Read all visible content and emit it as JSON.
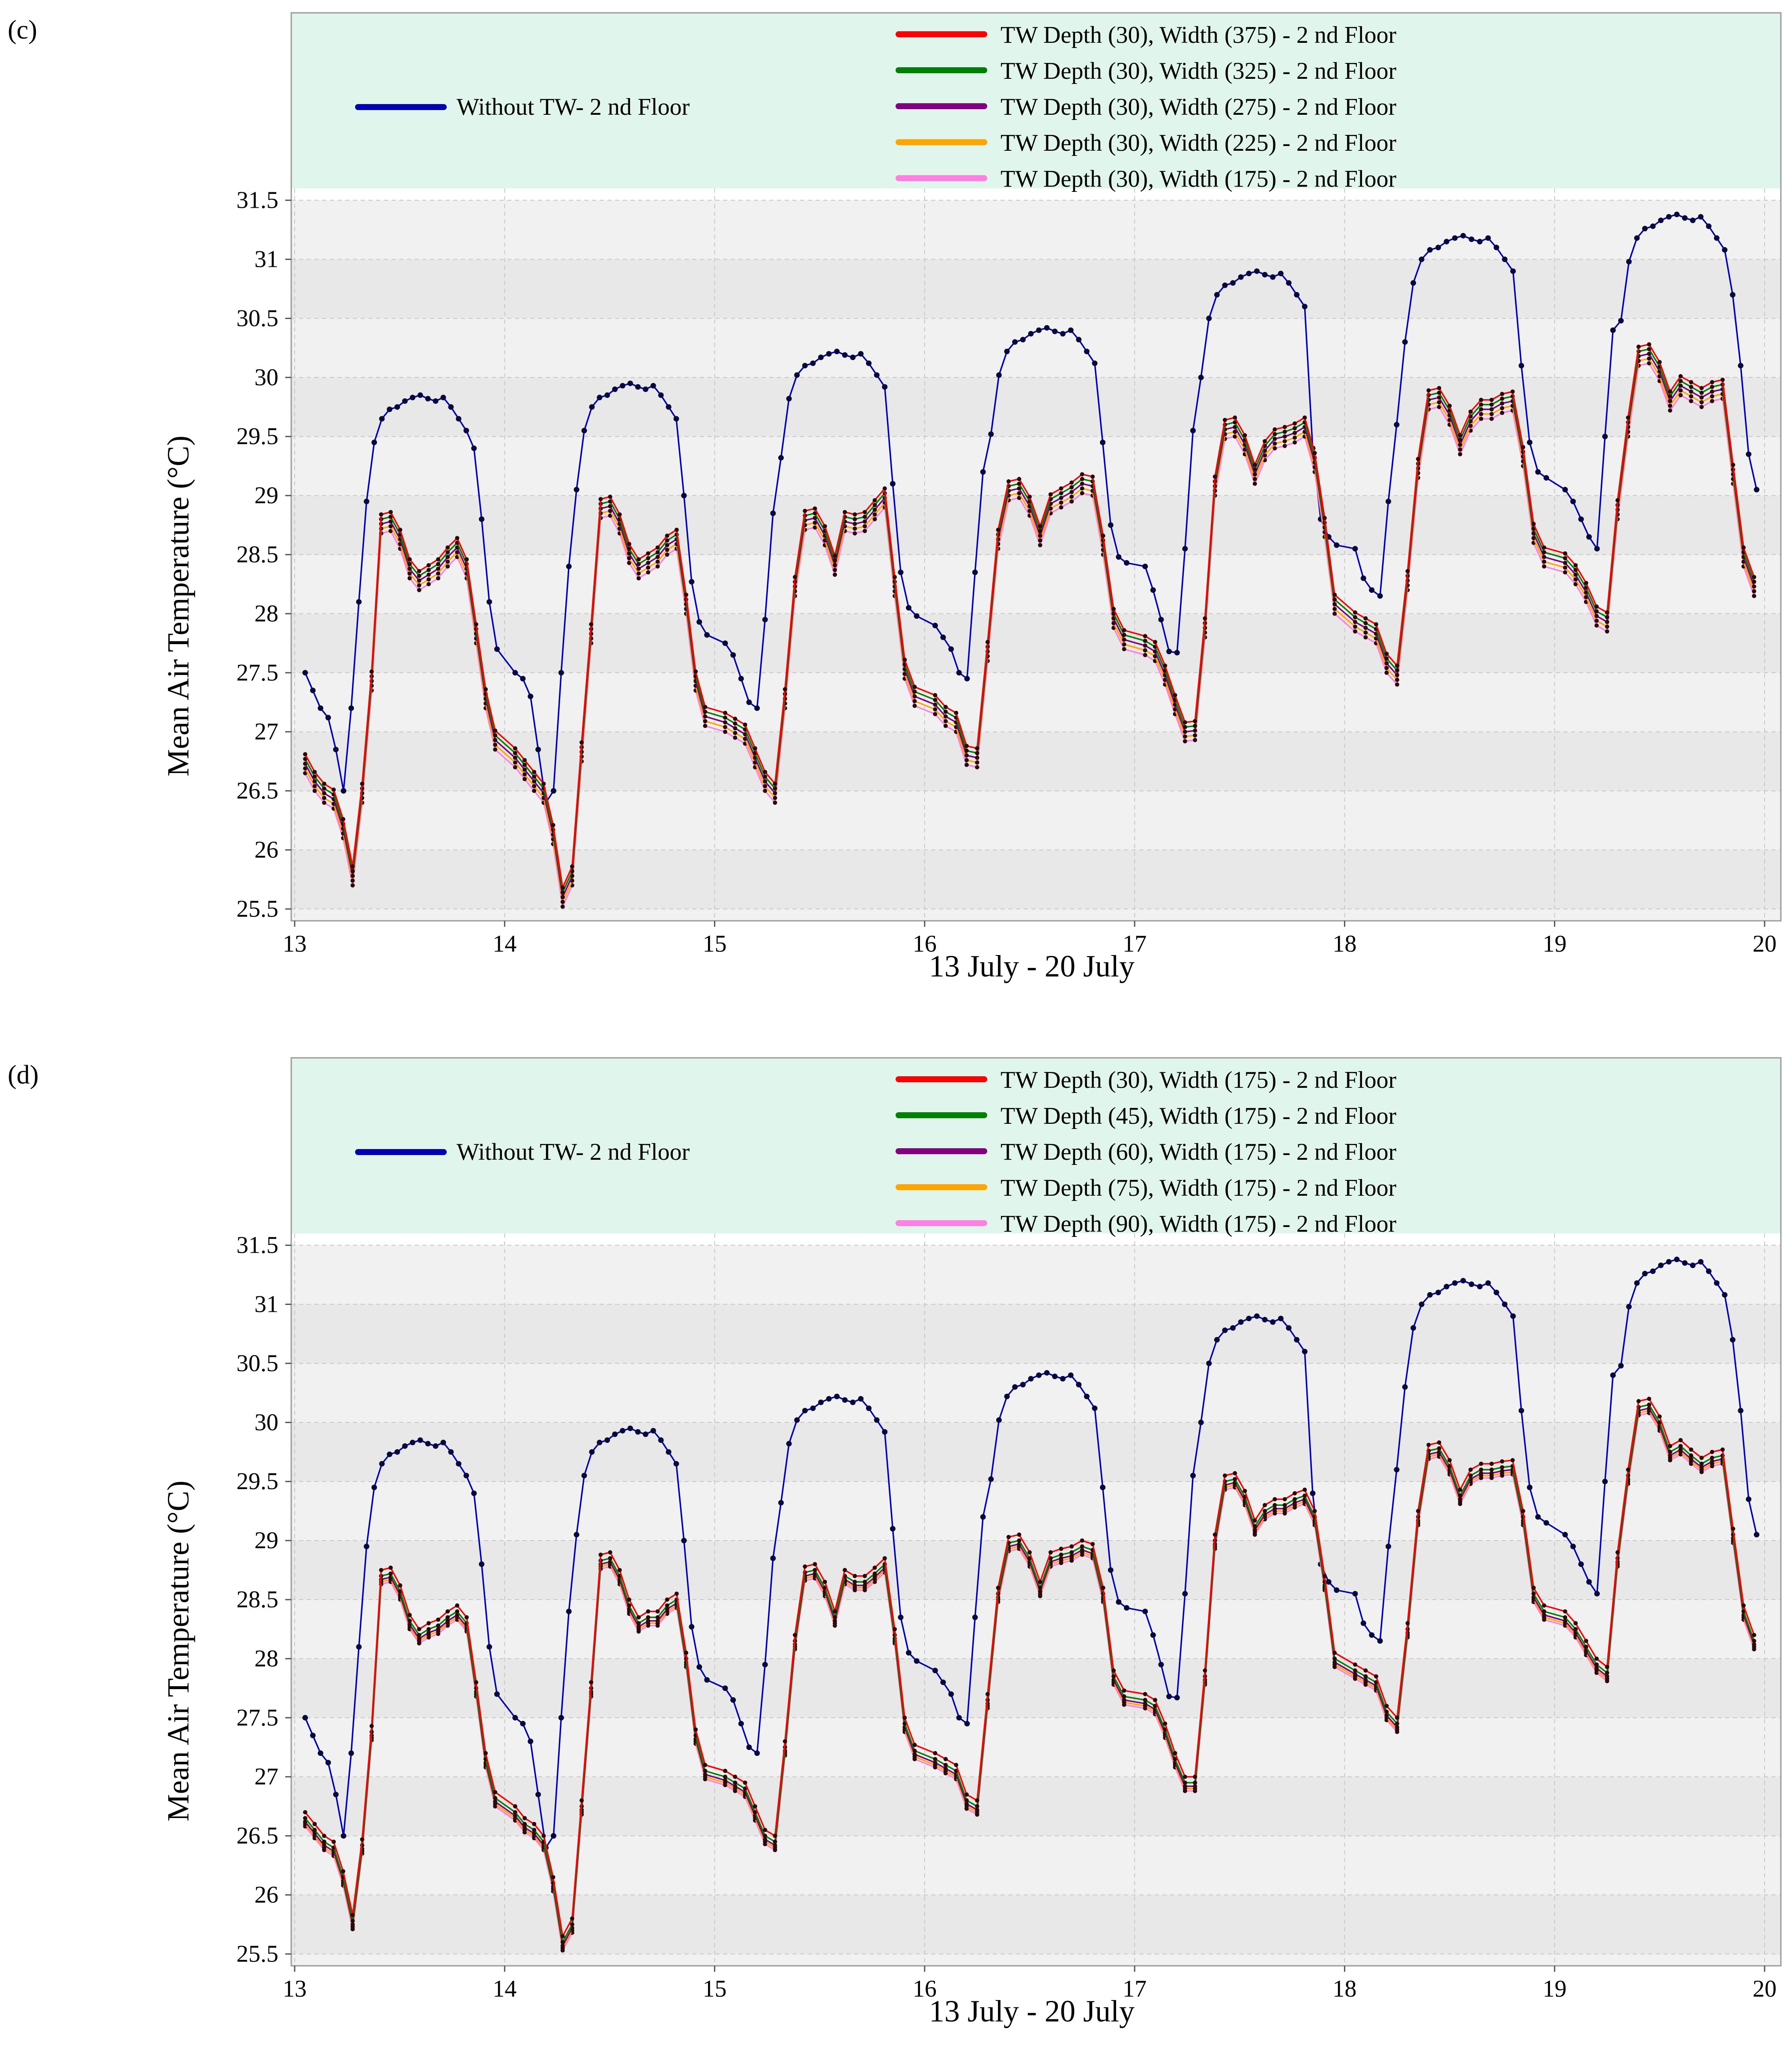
{
  "chart_data": [
    {
      "panel_label": "(c)",
      "type": "line",
      "xlabel": "13 July - 20 July",
      "ylabel": "Mean Air Temperature (°C)",
      "xlim": [
        13,
        20
      ],
      "ylim": [
        25.4,
        31.6
      ],
      "x_ticks": [
        "13",
        "14",
        "15",
        "16",
        "17",
        "18",
        "19",
        "20"
      ],
      "y_ticks": [
        "25.5",
        "26",
        "26.5",
        "27",
        "27.5",
        "28",
        "28.5",
        "29",
        "29.5",
        "30",
        "30.5",
        "31",
        "31.5"
      ],
      "grid": true,
      "legend": {
        "placement": "top",
        "background": "#e0f5ec"
      },
      "baseline": {
        "name": "Without TW- 2 nd Floor",
        "color": "#0000b4",
        "days": [
          {
            "night": [
              27.5,
              27.35,
              27.2,
              27.12,
              26.85,
              26.5
            ],
            "rise": [
              27.2,
              28.1
            ],
            "peak": 29.85,
            "evening": [
              29.4,
              28.8,
              28.1,
              27.7
            ]
          },
          {
            "night": [
              27.5,
              27.45,
              27.3,
              26.85,
              26.4
            ],
            "rise": [
              26.5,
              27.5,
              28.4
            ],
            "peak": 29.95,
            "evening": [
              29.0,
              28.27,
              27.93,
              27.82
            ]
          },
          {
            "night": [
              27.75,
              27.65,
              27.45,
              27.25,
              27.2
            ],
            "rise": [
              27.95,
              28.85
            ],
            "peak": 30.22,
            "evening": [
              29.1,
              28.35,
              28.05,
              27.98
            ]
          },
          {
            "night": [
              27.9,
              27.8,
              27.7,
              27.5,
              27.45
            ],
            "rise": [
              28.35,
              29.2
            ],
            "peak": 30.42,
            "evening": [
              29.45,
              28.75,
              28.48,
              28.43
            ]
          },
          {
            "night": [
              28.4,
              28.2,
              27.95,
              27.68,
              27.67
            ],
            "rise": [
              28.55,
              29.55
            ],
            "peak": 30.9,
            "evening": [
              29.4,
              28.8,
              28.65,
              28.58
            ]
          },
          {
            "night": [
              28.55,
              28.3,
              28.2,
              28.15
            ],
            "rise": [
              28.95,
              29.6
            ],
            "peak": 31.2,
            "evening": [
              30.1,
              29.45,
              29.2,
              29.15
            ]
          },
          {
            "night": [
              29.05,
              28.95,
              28.8,
              28.65,
              28.55
            ],
            "rise": [
              29.5,
              30.4
            ],
            "peak": 31.38,
            "evening": [
              30.7,
              30.1,
              29.35,
              29.05
            ]
          }
        ]
      },
      "tw_profile": [
        {
          "night": [
            26.75,
            26.6,
            26.5,
            26.45,
            26.2,
            25.8
          ],
          "rise": [
            26.5,
            27.45
          ],
          "peak": 28.8,
          "plateau": [
            28.3,
            28.35,
            28.4,
            28.5,
            28.58
          ],
          "evening": [
            28.4,
            27.85,
            27.3,
            26.95
          ]
        },
        {
          "night": [
            26.8,
            26.7,
            26.6,
            26.5,
            26.15,
            25.62
          ],
          "rise": [
            25.8,
            26.85,
            27.85
          ],
          "peak": 28.93,
          "plateau": [
            28.4,
            28.45,
            28.5,
            28.6,
            28.65
          ],
          "evening": [
            28.1,
            27.45,
            27.15
          ]
        },
        {
          "night": [
            27.1,
            27.05,
            27.0,
            26.8,
            26.6,
            26.5
          ],
          "rise": [
            27.3,
            28.25
          ],
          "peak": 28.83,
          "plateau": [
            28.8,
            28.78,
            28.8,
            28.9,
            29.0
          ],
          "evening": [
            28.25,
            27.55,
            27.32
          ]
        },
        {
          "night": [
            27.25,
            27.15,
            27.1,
            26.82,
            26.8
          ],
          "rise": [
            27.7,
            28.65
          ],
          "peak": 29.08,
          "plateau": [
            28.95,
            29.0,
            29.05,
            29.12,
            29.1
          ],
          "evening": [
            28.6,
            27.98,
            27.8
          ]
        },
        {
          "night": [
            27.75,
            27.7,
            27.5,
            27.25,
            27.02,
            27.03
          ],
          "rise": [
            27.9,
            29.1
          ],
          "peak": 29.6,
          "plateau": [
            29.4,
            29.5,
            29.52,
            29.55,
            29.6
          ],
          "evening": [
            29.3,
            28.75,
            28.1
          ]
        },
        {
          "night": [
            27.95,
            27.9,
            27.85,
            27.6,
            27.5
          ],
          "rise": [
            28.3,
            29.25
          ],
          "peak": 29.85,
          "plateau": [
            29.65,
            29.75,
            29.75,
            29.8,
            29.82
          ],
          "evening": [
            29.35,
            28.7,
            28.5
          ]
        },
        {
          "night": [
            28.45,
            28.35,
            28.2,
            28.0,
            27.95
          ],
          "rise": [
            28.9,
            29.6
          ],
          "peak": 30.22,
          "plateau": [
            29.95,
            29.9,
            29.85,
            29.9,
            29.92
          ],
          "evening": [
            29.2,
            28.5,
            28.25
          ]
        }
      ],
      "series": [
        {
          "name": "TW Depth (30), Width (375) - 2 nd Floor",
          "color": "#ff0000",
          "offset": 0.06
        },
        {
          "name": "TW Depth (30), Width (325) - 2 nd Floor",
          "color": "#008000",
          "offset": 0.02
        },
        {
          "name": "TW Depth (30), Width (275) - 2 nd Floor",
          "color": "#800080",
          "offset": -0.02
        },
        {
          "name": "TW Depth (30), Width (225) - 2 nd Floor",
          "color": "#ffa500",
          "offset": -0.06
        },
        {
          "name": "TW Depth (30), Width (175) -  2 nd Floor",
          "color": "#ff80e0",
          "offset": -0.1
        }
      ]
    },
    {
      "panel_label": "(d)",
      "type": "line",
      "xlabel": "13 July - 20 July",
      "ylabel": "Mean Air Temperature (°C)",
      "xlim": [
        13,
        20
      ],
      "ylim": [
        25.4,
        31.6
      ],
      "x_ticks": [
        "13",
        "14",
        "15",
        "16",
        "17",
        "18",
        "19",
        "20"
      ],
      "y_ticks": [
        "25.5",
        "26",
        "26.5",
        "27",
        "27.5",
        "28",
        "28.5",
        "29",
        "29.5",
        "30",
        "30.5",
        "31",
        "31.5"
      ],
      "grid": true,
      "legend": {
        "placement": "top",
        "background": "#e0f5ec"
      },
      "baseline": {
        "name": "Without TW- 2 nd Floor",
        "color": "#0000b4",
        "days": [
          {
            "night": [
              27.5,
              27.35,
              27.2,
              27.12,
              26.85,
              26.5
            ],
            "rise": [
              27.2,
              28.1
            ],
            "peak": 29.85,
            "evening": [
              29.4,
              28.8,
              28.1,
              27.7
            ]
          },
          {
            "night": [
              27.5,
              27.45,
              27.3,
              26.85,
              26.4
            ],
            "rise": [
              26.5,
              27.5,
              28.4
            ],
            "peak": 29.95,
            "evening": [
              29.0,
              28.27,
              27.93,
              27.82
            ]
          },
          {
            "night": [
              27.75,
              27.65,
              27.45,
              27.25,
              27.2
            ],
            "rise": [
              27.95,
              28.85
            ],
            "peak": 30.22,
            "evening": [
              29.1,
              28.35,
              28.05,
              27.98
            ]
          },
          {
            "night": [
              27.9,
              27.8,
              27.7,
              27.5,
              27.45
            ],
            "rise": [
              28.35,
              29.2
            ],
            "peak": 30.42,
            "evening": [
              29.45,
              28.75,
              28.48,
              28.43
            ]
          },
          {
            "night": [
              28.4,
              28.2,
              27.95,
              27.68,
              27.67
            ],
            "rise": [
              28.55,
              29.55
            ],
            "peak": 30.9,
            "evening": [
              29.4,
              28.8,
              28.65,
              28.58
            ]
          },
          {
            "night": [
              28.55,
              28.3,
              28.2,
              28.15
            ],
            "rise": [
              28.95,
              29.6
            ],
            "peak": 31.2,
            "evening": [
              30.1,
              29.45,
              29.2,
              29.15
            ]
          },
          {
            "night": [
              29.05,
              28.95,
              28.8,
              28.65,
              28.55
            ],
            "rise": [
              29.5,
              30.4
            ],
            "peak": 31.38,
            "evening": [
              30.7,
              30.1,
              29.35,
              29.05
            ]
          }
        ]
      },
      "tw_profile": [
        {
          "night": [
            26.65,
            26.55,
            26.45,
            26.4,
            26.15,
            25.78
          ],
          "rise": [
            26.42,
            27.38
          ],
          "peak": 28.72,
          "plateau": [
            28.2,
            28.25,
            28.28,
            28.35,
            28.4
          ],
          "evening": [
            28.3,
            27.75,
            27.15,
            26.82
          ]
        },
        {
          "night": [
            26.7,
            26.6,
            26.55,
            26.45,
            26.1,
            25.6
          ],
          "rise": [
            25.75,
            26.75,
            27.75
          ],
          "peak": 28.85,
          "plateau": [
            28.3,
            28.35,
            28.35,
            28.45,
            28.5
          ],
          "evening": [
            28.0,
            27.35,
            27.05
          ]
        },
        {
          "night": [
            27.0,
            26.95,
            26.9,
            26.7,
            26.5,
            26.45
          ],
          "rise": [
            27.25,
            28.15
          ],
          "peak": 28.75,
          "plateau": [
            28.7,
            28.65,
            28.65,
            28.72,
            28.8
          ],
          "evening": [
            28.2,
            27.45,
            27.22
          ]
        },
        {
          "night": [
            27.15,
            27.1,
            27.05,
            26.8,
            26.75
          ],
          "rise": [
            27.65,
            28.55
          ],
          "peak": 29.0,
          "plateau": [
            28.85,
            28.88,
            28.9,
            28.95,
            28.92
          ],
          "evening": [
            28.55,
            27.85,
            27.68
          ]
        },
        {
          "night": [
            27.65,
            27.6,
            27.4,
            27.15,
            26.95,
            26.95
          ],
          "rise": [
            27.85,
            29.0
          ],
          "peak": 29.52,
          "plateau": [
            29.25,
            29.3,
            29.3,
            29.35,
            29.38
          ],
          "evening": [
            29.2,
            28.65,
            28.0
          ]
        },
        {
          "night": [
            27.9,
            27.85,
            27.8,
            27.55,
            27.45
          ],
          "rise": [
            28.25,
            29.2
          ],
          "peak": 29.78,
          "plateau": [
            29.55,
            29.6,
            29.6,
            29.62,
            29.63
          ],
          "evening": [
            29.2,
            28.55,
            28.4
          ]
        },
        {
          "night": [
            28.35,
            28.25,
            28.1,
            27.95,
            27.88
          ],
          "rise": [
            28.85,
            29.55
          ],
          "peak": 30.15,
          "plateau": [
            29.8,
            29.72,
            29.65,
            29.7,
            29.72
          ],
          "evening": [
            29.05,
            28.4,
            28.15
          ]
        }
      ],
      "series": [
        {
          "name": "TW Depth (30), Width (175) - 2 nd Floor",
          "color": "#ff0000",
          "offset": 0.05
        },
        {
          "name": "TW Depth (45), Width (175) - 2 nd Floor",
          "color": "#008000",
          "offset": 0.0
        },
        {
          "name": "TW Depth (60), Width (175) - 2 nd Floor",
          "color": "#800080",
          "offset": -0.03
        },
        {
          "name": "TW Depth (75), Width (175) - 2 nd Floor",
          "color": "#ffa500",
          "offset": -0.05
        },
        {
          "name": "TW Depth (90), Width (175) - 2 nd Floor",
          "color": "#ff80e0",
          "offset": -0.07
        }
      ]
    }
  ]
}
